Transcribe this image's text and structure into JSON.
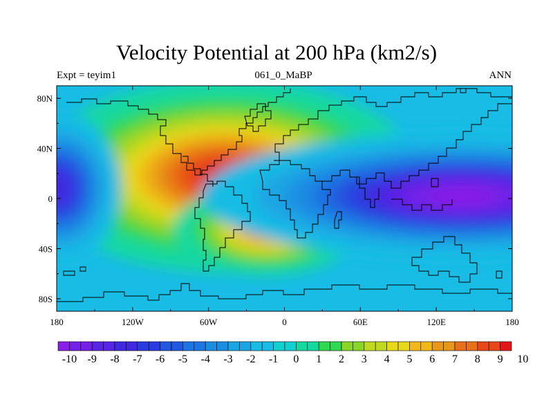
{
  "chart_data": {
    "type": "heatmap",
    "title": "Velocity Potential at 200 hPa (km2/s)",
    "subtitle_left": "Expt = teyim1",
    "subtitle_center": "061_0_MaBP",
    "subtitle_right": "ANN",
    "x_ticks": [
      "180",
      "120W",
      "60W",
      "0",
      "60E",
      "120E",
      "180"
    ],
    "x_tick_values": [
      -180,
      -120,
      -60,
      0,
      60,
      120,
      180
    ],
    "y_ticks": [
      "80N",
      "40N",
      "0",
      "40S",
      "80S"
    ],
    "y_tick_values": [
      80,
      40,
      0,
      -40,
      -80
    ],
    "xlim": [
      -180,
      180
    ],
    "ylim": [
      -90,
      90
    ],
    "colorbar": {
      "labels": [
        "-10",
        "-9",
        "-8",
        "-7",
        "-6",
        "-5",
        "-4",
        "-3",
        "-2",
        "-1",
        "0",
        "1",
        "2",
        "3",
        "4",
        "5",
        "6",
        "7",
        "8",
        "9",
        "10"
      ],
      "levels": [
        -10,
        -9,
        -8,
        -7,
        -6,
        -5,
        -4,
        -3,
        -2,
        -1,
        0,
        1,
        2,
        3,
        4,
        5,
        6,
        7,
        8,
        9,
        10
      ],
      "colors": [
        "#8a1fe8",
        "#7420e6",
        "#5a24e4",
        "#3f2ae0",
        "#2a3ce0",
        "#2058e0",
        "#1e74e2",
        "#1c8ee2",
        "#1aa6e4",
        "#18bce4",
        "#12cfd0",
        "#14d8a0",
        "#30d850",
        "#8ad428",
        "#c0d81e",
        "#e8d81a",
        "#f0b818",
        "#e89818",
        "#e87018",
        "#e84818",
        "#e01818"
      ]
    },
    "field_features": [
      {
        "name": "max-south-america",
        "lon": -47,
        "lat": 18,
        "value": 10,
        "sx": 60,
        "sy": 30
      },
      {
        "name": "max-south-atlantic",
        "lon": -15,
        "lat": -25,
        "value": 7.5,
        "sx": 30,
        "sy": 15
      },
      {
        "name": "min-west-pacific",
        "lon": 140,
        "lat": 2,
        "value": -10,
        "sx": 80,
        "sy": 20
      },
      {
        "name": "min-east-pacific",
        "lon": -178,
        "lat": 8,
        "value": -7.5,
        "sx": 20,
        "sy": 25
      }
    ]
  }
}
